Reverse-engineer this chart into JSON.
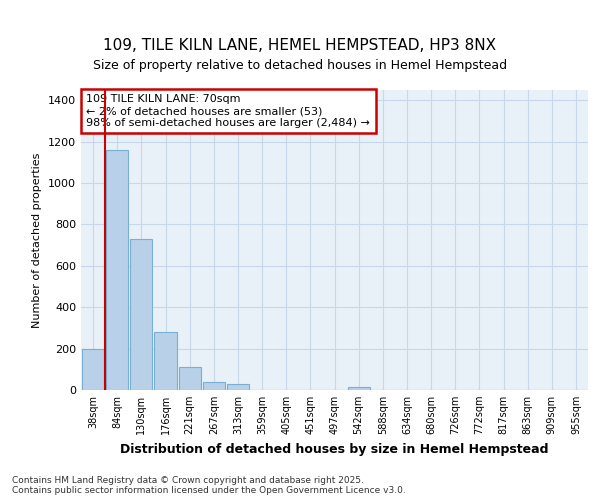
{
  "title1": "109, TILE KILN LANE, HEMEL HEMPSTEAD, HP3 8NX",
  "title2": "Size of property relative to detached houses in Hemel Hempstead",
  "xlabel": "Distribution of detached houses by size in Hemel Hempstead",
  "ylabel": "Number of detached properties",
  "categories": [
    "38sqm",
    "84sqm",
    "130sqm",
    "176sqm",
    "221sqm",
    "267sqm",
    "313sqm",
    "359sqm",
    "405sqm",
    "451sqm",
    "497sqm",
    "542sqm",
    "588sqm",
    "634sqm",
    "680sqm",
    "726sqm",
    "772sqm",
    "817sqm",
    "863sqm",
    "909sqm",
    "955sqm"
  ],
  "values": [
    200,
    1160,
    730,
    280,
    110,
    40,
    30,
    0,
    0,
    0,
    0,
    15,
    0,
    0,
    0,
    0,
    0,
    0,
    0,
    0,
    0
  ],
  "bar_color": "#b8d0e8",
  "bar_edge_color": "#7aafd4",
  "annotation_box_color": "#cc0000",
  "annotation_line1": "109 TILE KILN LANE: 70sqm",
  "annotation_line2": "← 2% of detached houses are smaller (53)",
  "annotation_line3": "98% of semi-detached houses are larger (2,484) →",
  "ylim": [
    0,
    1450
  ],
  "yticks": [
    0,
    200,
    400,
    600,
    800,
    1000,
    1200,
    1400
  ],
  "footer1": "Contains HM Land Registry data © Crown copyright and database right 2025.",
  "footer2": "Contains public sector information licensed under the Open Government Licence v3.0.",
  "bg_color": "#ffffff",
  "plot_bg_color": "#e8f0f8",
  "grid_color": "#c8d8ea",
  "vline_color": "#cc0000",
  "vline_x_index": 1,
  "title1_fontsize": 11,
  "title2_fontsize": 9
}
